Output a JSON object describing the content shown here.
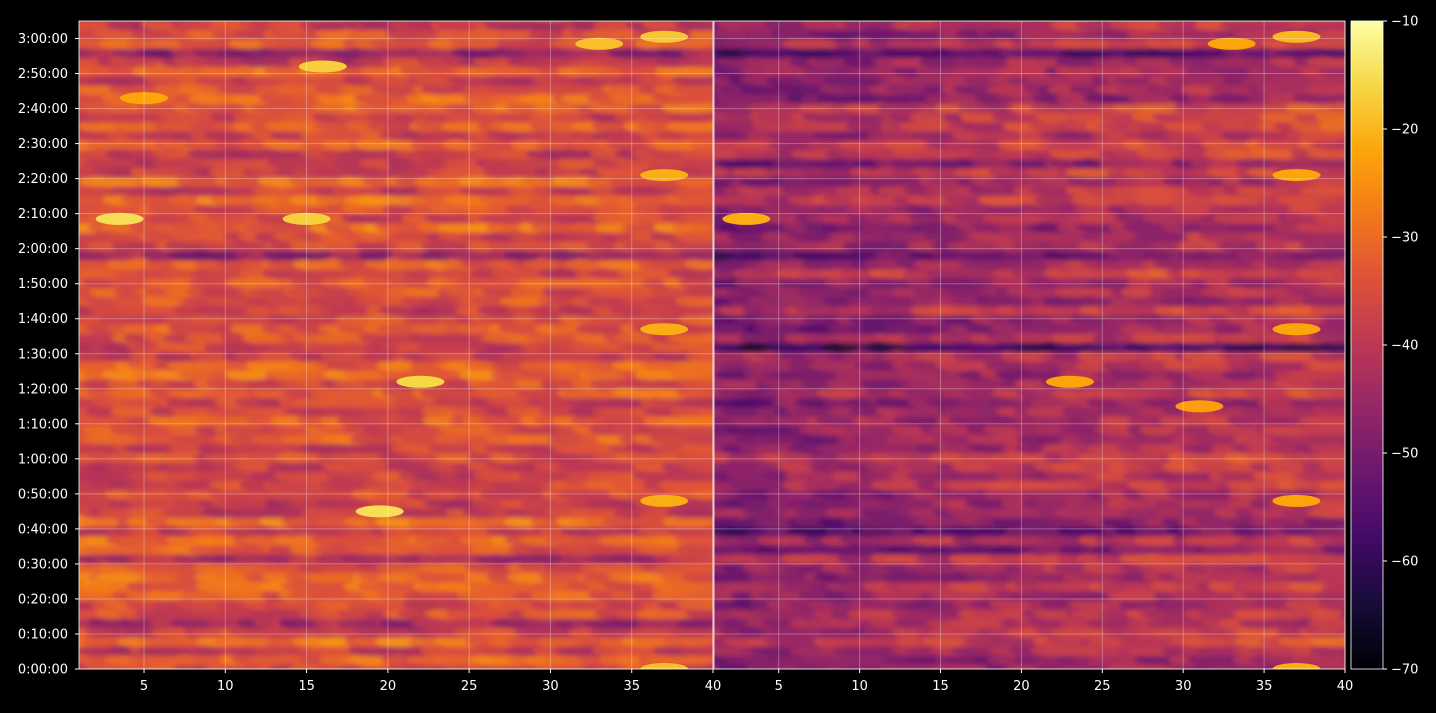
{
  "chart_data": [
    {
      "type": "heatmap",
      "panel": "left",
      "title": "",
      "xlabel": "",
      "ylabel": "",
      "xlim": [
        1,
        40
      ],
      "ylim_seconds": [
        0,
        11100
      ],
      "x_ticks": [
        5,
        10,
        15,
        20,
        25,
        30,
        35,
        40
      ],
      "y_ticks": [
        "0:00:00",
        "0:10:00",
        "0:20:00",
        "0:30:00",
        "0:40:00",
        "0:50:00",
        "1:00:00",
        "1:10:00",
        "1:20:00",
        "1:30:00",
        "1:40:00",
        "1:50:00",
        "2:00:00",
        "2:10:00",
        "2:20:00",
        "2:30:00",
        "2:40:00",
        "2:50:00",
        "3:00:00"
      ],
      "grid": true,
      "value_level": "brighter",
      "hotspots": [
        {
          "x": 3.5,
          "time": "2:08:30",
          "value": -15
        },
        {
          "x": 19.5,
          "time": "0:45:00",
          "value": -15
        },
        {
          "x": 22,
          "time": "1:22:00",
          "value": -16
        },
        {
          "x": 37,
          "time": "3:00:30",
          "value": -18
        },
        {
          "x": 37,
          "time": "2:21:00",
          "value": -21
        },
        {
          "x": 37,
          "time": "1:37:00",
          "value": -21
        },
        {
          "x": 37,
          "time": "0:48:00",
          "value": -21
        },
        {
          "x": 33,
          "time": "2:58:30",
          "value": -19
        },
        {
          "x": 15,
          "time": "2:08:30",
          "value": -17
        },
        {
          "x": 16,
          "time": "2:52:00",
          "value": -17
        },
        {
          "x": 37,
          "time": "0:00:00",
          "value": -19
        },
        {
          "x": 5,
          "time": "2:43:00",
          "value": -22
        }
      ],
      "dark_bands": [
        "0:32:00",
        "0:12:00",
        "1:58:00",
        "2:55:00"
      ]
    },
    {
      "type": "heatmap",
      "panel": "right",
      "title": "",
      "xlabel": "",
      "ylabel": "",
      "xlim": [
        1,
        40
      ],
      "ylim_seconds": [
        0,
        11100
      ],
      "x_ticks": [
        5,
        10,
        15,
        20,
        25,
        30,
        35,
        40
      ],
      "grid": true,
      "value_level": "darker",
      "hotspots": [
        {
          "x": 3,
          "time": "2:08:30",
          "value": -21
        },
        {
          "x": 23,
          "time": "1:22:00",
          "value": -22
        },
        {
          "x": 37,
          "time": "3:00:30",
          "value": -20
        },
        {
          "x": 37,
          "time": "2:21:00",
          "value": -22
        },
        {
          "x": 37,
          "time": "1:37:00",
          "value": -22
        },
        {
          "x": 37,
          "time": "0:48:00",
          "value": -22
        },
        {
          "x": 33,
          "time": "2:58:30",
          "value": -22
        },
        {
          "x": 31,
          "time": "1:15:00",
          "value": -23
        },
        {
          "x": 37,
          "time": "0:00:00",
          "value": -21
        }
      ],
      "dark_bands": [
        "0:35:00",
        "0:40:00",
        "1:58:00",
        "1:32:00",
        "2:55:00"
      ]
    }
  ],
  "colorbar": {
    "cmap": "inferno",
    "vmin": -70,
    "vmax": -10,
    "ticks": [
      -10,
      -20,
      -30,
      -40,
      -50,
      -60,
      -70
    ],
    "tick_labels": [
      "−10",
      "−20",
      "−30",
      "−40",
      "−50",
      "−60",
      "−70"
    ]
  },
  "colors": {
    "background": "#000000",
    "text": "#ffffff",
    "grid": "#ffffff"
  }
}
